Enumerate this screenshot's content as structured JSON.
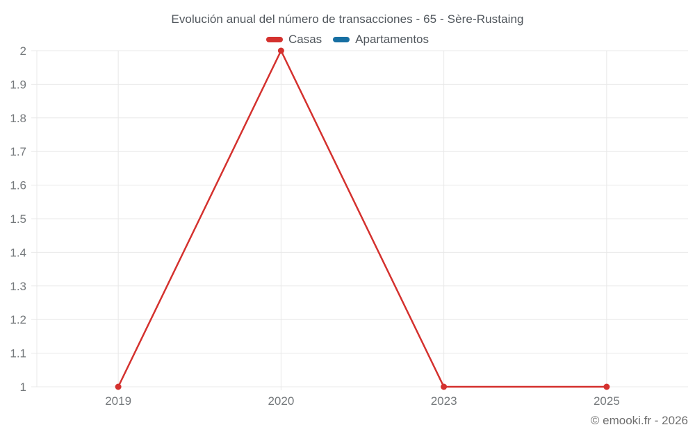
{
  "chart": {
    "title": "Evolución anual del número de transacciones - 65 - Sère-Rustaing",
    "legend": [
      {
        "label": "Casas",
        "color": "#d4312e"
      },
      {
        "label": "Apartamentos",
        "color": "#176fa2"
      }
    ]
  },
  "chart_data": {
    "type": "line",
    "title": "Evolución anual del número de transacciones - 65 - Sère-Rustaing",
    "categories": [
      "2019",
      "2020",
      "2023",
      "2025"
    ],
    "series": [
      {
        "name": "Casas",
        "color": "#d4312e",
        "values": [
          1,
          2,
          1,
          1
        ]
      },
      {
        "name": "Apartamentos",
        "color": "#176fa2",
        "values": []
      }
    ],
    "xlabel": "",
    "ylabel": "",
    "ylim": [
      1,
      2
    ],
    "ytick_step": 0.1,
    "yticks": [
      1,
      1.1,
      1.2,
      1.3,
      1.4,
      1.5,
      1.6,
      1.7,
      1.8,
      1.9,
      2
    ],
    "grid": true,
    "legend_position": "top",
    "marker": "circle"
  },
  "colors": {
    "grid": "#e8e8e8",
    "axis_text": "#75797c",
    "title_text": "#51575d",
    "watermark_text": "#6e6e6e"
  },
  "footer": {
    "watermark": "© emooki.fr - 2026"
  }
}
